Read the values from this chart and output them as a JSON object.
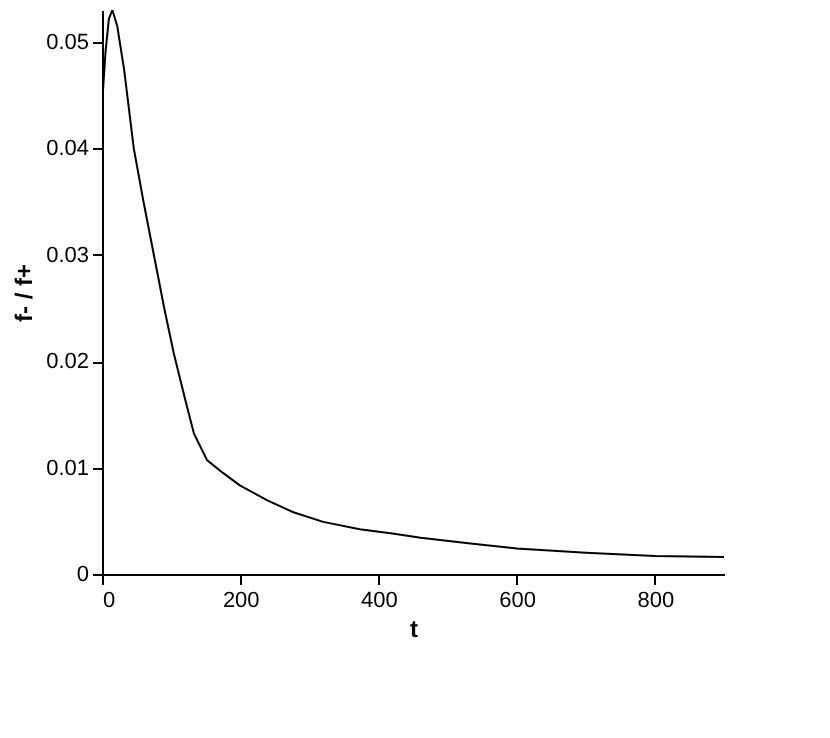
{
  "chart_data": {
    "type": "line",
    "xlabel": "t",
    "ylabel": "f- / f+",
    "x": [
      0,
      5,
      10,
      15,
      22,
      32,
      46,
      60,
      75,
      90,
      104,
      120,
      133,
      152,
      175,
      200,
      240,
      277,
      320,
      373,
      420,
      461,
      530,
      600,
      700,
      800,
      900
    ],
    "values": [
      0.044,
      0.049,
      0.0522,
      0.053,
      0.0515,
      0.0474,
      0.04,
      0.035,
      0.03,
      0.025,
      0.0207,
      0.0165,
      0.0132,
      0.0107,
      0.0095,
      0.0083,
      0.0069,
      0.0058,
      0.0049,
      0.0042,
      0.0038,
      0.0034,
      0.0029,
      0.0024,
      0.002,
      0.0017,
      0.0016
    ],
    "color": "#000000",
    "xlim": [
      0,
      900
    ],
    "xticks": [
      0,
      200,
      400,
      600,
      800
    ],
    "ylim": [
      0,
      0.053
    ],
    "yticks": [
      0,
      0.01,
      0.02,
      0.03,
      0.04,
      0.05
    ],
    "grid": false,
    "line_style": "solid",
    "marker": "none"
  }
}
